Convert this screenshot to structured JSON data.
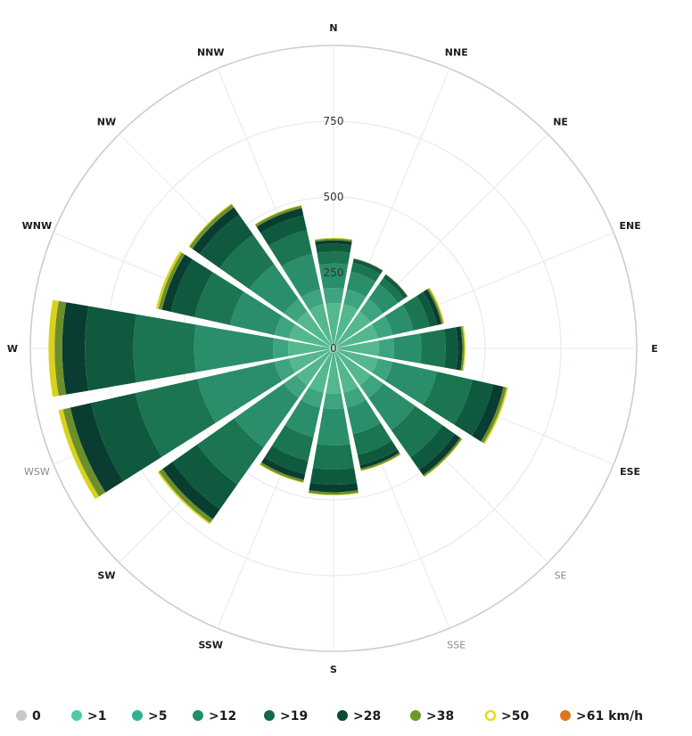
{
  "chart_data": {
    "type": "windrose",
    "directions": [
      "N",
      "NNE",
      "NE",
      "ENE",
      "E",
      "ESE",
      "SE",
      "SSE",
      "S",
      "SSW",
      "SW",
      "WSW",
      "W",
      "WNW",
      "NW",
      "NNW"
    ],
    "faint_directions": [
      "SE",
      "SSE",
      "WSW"
    ],
    "radial_ticks": [
      "0",
      "250",
      "500",
      "750"
    ],
    "radial_tick_values": [
      0,
      250,
      500,
      750
    ],
    "rmax": 1000,
    "grid": true,
    "legend_position": "bottom",
    "speed_bins": [
      ">1",
      ">5",
      ">12",
      ">19",
      ">28",
      ">38",
      ">50",
      ">61 km/h"
    ],
    "legend_entries": [
      "0",
      ">1",
      ">5",
      ">12",
      ">19",
      ">28",
      ">38",
      ">50",
      ">61 km/h"
    ],
    "legend_colors": [
      "#c7c7c7",
      "#4fc8a8",
      "#2fb292",
      "#1f8f67",
      "#116b46",
      "#0c4a38",
      "#6f9a2a",
      "#e4dc1f",
      "#e0751e"
    ],
    "bin_colors": [
      "#54b88f",
      "#3ea47f",
      "#2a8e6a",
      "#1b7550",
      "#0f5a3e",
      "#0a3d31",
      "#6c8f2c",
      "#d9d21c",
      "#d9541b"
    ],
    "totals": [
      365,
      305,
      300,
      375,
      435,
      590,
      520,
      415,
      485,
      455,
      710,
      930,
      940,
      600,
      585,
      485
    ],
    "series": [
      {
        "name": ">1",
        "values": [
          150,
          150,
          150,
          150,
          150,
          150,
          150,
          150,
          150,
          150,
          150,
          150,
          150,
          150,
          150,
          150
        ]
      },
      {
        "name": ">5",
        "values": [
          50,
          50,
          50,
          50,
          50,
          50,
          50,
          50,
          50,
          50,
          50,
          50,
          50,
          50,
          50,
          50
        ]
      },
      {
        "name": ">12",
        "values": [
          80,
          60,
          60,
          70,
          90,
          150,
          130,
          90,
          120,
          100,
          200,
          260,
          260,
          150,
          140,
          120
        ]
      },
      {
        "name": ">19",
        "values": [
          40,
          30,
          25,
          55,
          80,
          120,
          110,
          70,
          80,
          80,
          150,
          210,
          200,
          120,
          120,
          80
        ]
      },
      {
        "name": ">28",
        "values": [
          25,
          10,
          10,
          25,
          40,
          70,
          50,
          35,
          50,
          45,
          100,
          150,
          160,
          80,
          80,
          50
        ]
      },
      {
        "name": ">38",
        "values": [
          12,
          3,
          3,
          15,
          15,
          35,
          22,
          12,
          25,
          20,
          40,
          70,
          75,
          30,
          30,
          25
        ]
      },
      {
        "name": ">50",
        "values": [
          6,
          2,
          2,
          6,
          6,
          10,
          6,
          6,
          8,
          8,
          15,
          25,
          25,
          12,
          12,
          8
        ]
      },
      {
        "name": ">61 km/h",
        "values": [
          2,
          0,
          0,
          4,
          4,
          5,
          2,
          2,
          2,
          2,
          5,
          15,
          20,
          8,
          3,
          2
        ]
      }
    ]
  }
}
